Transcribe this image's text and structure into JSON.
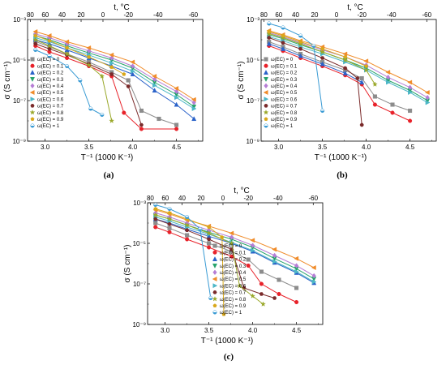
{
  "series_colors": [
    "#8c8c8c",
    "#e8222a",
    "#2a62c9",
    "#26a36b",
    "#b67ed6",
    "#f08c2a",
    "#4db7c7",
    "#7a2a2a",
    "#9aa82a",
    "#d9a81a",
    "#3a9bd4"
  ],
  "series_markers": [
    "square",
    "circle",
    "triangle-up",
    "triangle-down",
    "diamond",
    "triangle-left",
    "triangle-right",
    "hexagon",
    "star",
    "pentagon",
    "half-circle"
  ],
  "chart_data": [
    {
      "type": "line",
      "panel_label": "(a)",
      "xlabel": "T⁻¹ (1000 K⁻¹)",
      "ylabel": "σ (S cm⁻¹)",
      "top_xlabel": "t, °C",
      "xlim": [
        2.8,
        4.8
      ],
      "ylim_log10": [
        -9,
        -3
      ],
      "xticks": [
        "3.0",
        "3.5",
        "4.0",
        "4.5"
      ],
      "xtick_values": [
        3.0,
        3.5,
        4.0,
        4.5
      ],
      "yticks": [
        "10⁻³",
        "10⁻⁵",
        "10⁻⁷",
        "10⁻⁹"
      ],
      "ytick_exponents": [
        -3,
        -5,
        -7,
        -9
      ],
      "top_ticks": [
        "80",
        "60",
        "40",
        "20",
        "0",
        "-20",
        "-40",
        "-60"
      ],
      "top_tick_celsius": [
        80,
        60,
        40,
        20,
        0,
        -20,
        -40,
        -60
      ],
      "legend_position": "left",
      "series": [
        {
          "name": "ω(EC) = 0",
          "x": [
            2.89,
            3.05,
            3.25,
            3.5,
            3.76,
            3.95,
            4.1,
            4.3,
            4.5
          ],
          "log10_y": [
            -4.08,
            -4.35,
            -4.7,
            -5.1,
            -5.6,
            -6.0,
            -7.5,
            -7.9,
            -8.2
          ]
        },
        {
          "name": "ω(EC) = 0.1",
          "x": [
            2.89,
            3.05,
            3.25,
            3.5,
            3.76,
            3.9,
            4.1,
            4.5
          ],
          "log10_y": [
            -4.3,
            -4.6,
            -4.9,
            -5.3,
            -5.8,
            -7.6,
            -8.4,
            -8.4
          ]
        },
        {
          "name": "ω(EC) = 0.2",
          "x": [
            2.89,
            3.05,
            3.25,
            3.5,
            3.76,
            4.0,
            4.25,
            4.5,
            4.7
          ],
          "log10_y": [
            -4.0,
            -4.2,
            -4.5,
            -4.9,
            -5.3,
            -5.7,
            -6.5,
            -7.2,
            -7.9
          ]
        },
        {
          "name": "ω(EC) = 0.3",
          "x": [
            2.89,
            3.05,
            3.25,
            3.5,
            3.76,
            4.0,
            4.25,
            4.5,
            4.7
          ],
          "log10_y": [
            -3.8,
            -4.0,
            -4.3,
            -4.65,
            -5.0,
            -5.4,
            -6.1,
            -6.7,
            -7.3
          ]
        },
        {
          "name": "ω(EC) = 0.4",
          "x": [
            2.89,
            3.05,
            3.25,
            3.5,
            3.76,
            4.0,
            4.25,
            4.5,
            4.7
          ],
          "log10_y": [
            -3.72,
            -3.9,
            -4.2,
            -4.55,
            -4.9,
            -5.3,
            -5.95,
            -6.55,
            -7.1
          ]
        },
        {
          "name": "ω(EC) = 0.5",
          "x": [
            2.89,
            3.05,
            3.25,
            3.5,
            3.76,
            4.0,
            4.25,
            4.5,
            4.7
          ],
          "log10_y": [
            -3.6,
            -3.8,
            -4.1,
            -4.4,
            -4.75,
            -5.1,
            -5.8,
            -6.4,
            -6.95
          ]
        },
        {
          "name": "ω(EC) = 0.6",
          "x": [
            2.89,
            3.05,
            3.25,
            3.5,
            3.76,
            4.0,
            4.25,
            4.5,
            4.7
          ],
          "log10_y": [
            -3.9,
            -4.1,
            -4.4,
            -4.75,
            -5.15,
            -5.55,
            -6.25,
            -6.85,
            -7.4
          ]
        },
        {
          "name": "ω(EC) = 0.7",
          "x": [
            2.89,
            3.05,
            3.25,
            3.5,
            3.76,
            3.95,
            4.1
          ],
          "log10_y": [
            -4.2,
            -4.45,
            -4.75,
            -5.2,
            -5.7,
            -6.3,
            -8.2
          ]
        },
        {
          "name": "ω(EC) = 0.8",
          "x": [
            2.89,
            3.05,
            3.25,
            3.5,
            3.65,
            3.76
          ],
          "log10_y": [
            -4.0,
            -4.3,
            -4.7,
            -5.25,
            -5.8,
            -8.0
          ]
        },
        {
          "name": "ω(EC) = 0.9",
          "x": [
            2.89,
            3.05,
            3.25,
            3.5,
            3.76,
            3.9
          ],
          "log10_y": [
            -3.8,
            -4.05,
            -4.4,
            -4.85,
            -5.35,
            -5.7
          ]
        },
        {
          "name": "ω(EC) = 1",
          "x": [
            2.89,
            3.05,
            3.25,
            3.4,
            3.52,
            3.65
          ],
          "log10_y": [
            -4.5,
            -4.8,
            -5.3,
            -6.0,
            -7.4,
            -7.7
          ]
        }
      ]
    },
    {
      "type": "line",
      "panel_label": "(b)",
      "xlabel": "T⁻¹ (1000 K⁻¹)",
      "ylabel": "σ (S cm⁻¹)",
      "top_xlabel": "t, °C",
      "xlim": [
        2.8,
        4.8
      ],
      "ylim_log10": [
        -9,
        -3
      ],
      "xticks": [
        "3.0",
        "3.5",
        "4.0",
        "4.5"
      ],
      "xtick_values": [
        3.0,
        3.5,
        4.0,
        4.5
      ],
      "yticks": [
        "10⁻³",
        "10⁻⁵",
        "10⁻⁷",
        "10⁻⁹"
      ],
      "ytick_exponents": [
        -3,
        -5,
        -7,
        -9
      ],
      "top_ticks": [
        "80",
        "60",
        "40",
        "20",
        "0",
        "-20",
        "-40",
        "-60"
      ],
      "top_tick_celsius": [
        80,
        60,
        40,
        20,
        0,
        -20,
        -40,
        -60
      ],
      "legend_position": "left",
      "series": [
        {
          "name": "ω(EC) = 0",
          "x": [
            2.89,
            3.05,
            3.25,
            3.5,
            3.76,
            3.95,
            4.1,
            4.3,
            4.5
          ],
          "log10_y": [
            -4.1,
            -4.35,
            -4.7,
            -5.1,
            -5.5,
            -5.9,
            -6.8,
            -7.2,
            -7.5
          ]
        },
        {
          "name": "ω(EC) = 0.1",
          "x": [
            2.89,
            3.05,
            3.25,
            3.5,
            3.76,
            3.95,
            4.1,
            4.3,
            4.5
          ],
          "log10_y": [
            -4.3,
            -4.55,
            -4.9,
            -5.3,
            -5.75,
            -6.2,
            -7.2,
            -7.6,
            -8.0
          ]
        },
        {
          "name": "ω(EC) = 0.2",
          "x": [
            2.89,
            3.05,
            3.25,
            3.5,
            3.76,
            3.95
          ],
          "log10_y": [
            -4.2,
            -4.45,
            -4.8,
            -5.2,
            -5.65,
            -6.1
          ]
        },
        {
          "name": "ω(EC) = 0.3",
          "x": [
            2.89,
            3.05,
            3.25,
            3.5,
            3.76,
            4.0,
            4.25,
            4.5,
            4.7
          ],
          "log10_y": [
            -3.75,
            -3.95,
            -4.25,
            -4.6,
            -5.0,
            -5.4,
            -6.0,
            -6.5,
            -7.0
          ]
        },
        {
          "name": "ω(EC) = 0.4",
          "x": [
            2.89,
            3.05,
            3.25,
            3.5,
            3.76,
            4.0,
            4.25,
            4.5,
            4.7
          ],
          "log10_y": [
            -3.65,
            -3.85,
            -4.15,
            -4.5,
            -4.85,
            -5.25,
            -5.85,
            -6.35,
            -6.85
          ]
        },
        {
          "name": "ω(EC) = 0.5",
          "x": [
            2.89,
            3.05,
            3.25,
            3.5,
            3.76,
            4.0,
            4.25,
            4.5,
            4.7
          ],
          "log10_y": [
            -3.55,
            -3.75,
            -4.05,
            -4.35,
            -4.7,
            -5.05,
            -5.6,
            -6.1,
            -6.6
          ]
        },
        {
          "name": "ω(EC) = 0.6",
          "x": [
            2.89,
            3.05,
            3.25,
            3.5,
            3.76,
            4.0,
            4.25,
            4.5,
            4.7
          ],
          "log10_y": [
            -3.85,
            -4.05,
            -4.35,
            -4.7,
            -5.1,
            -5.5,
            -6.1,
            -6.6,
            -7.1
          ]
        },
        {
          "name": "ω(EC) = 0.7",
          "x": [
            2.89,
            3.05,
            3.25,
            3.5,
            3.76,
            3.9,
            3.95
          ],
          "log10_y": [
            -3.9,
            -4.15,
            -4.45,
            -4.9,
            -5.4,
            -5.9,
            -8.2
          ]
        },
        {
          "name": "ω(EC) = 0.8",
          "x": [
            2.89,
            3.05,
            3.25,
            3.5,
            3.76,
            4.0,
            4.1
          ],
          "log10_y": [
            -3.7,
            -3.9,
            -4.2,
            -4.6,
            -5.0,
            -5.5,
            -6.2
          ]
        },
        {
          "name": "ω(EC) = 0.9",
          "x": [
            2.89,
            3.05,
            3.25,
            3.5,
            3.76,
            4.0
          ],
          "log10_y": [
            -3.6,
            -3.8,
            -4.1,
            -4.45,
            -4.85,
            -5.3
          ]
        },
        {
          "name": "ω(EC) = 1",
          "x": [
            2.89,
            3.05,
            3.25,
            3.4,
            3.5
          ],
          "log10_y": [
            -3.2,
            -3.4,
            -3.8,
            -4.3,
            -7.5
          ]
        }
      ]
    },
    {
      "type": "line",
      "panel_label": "(c)",
      "xlabel": "T⁻¹ (1000 K⁻¹)",
      "ylabel": "σ (S cm⁻¹)",
      "top_xlabel": "t, °C",
      "xlim": [
        2.8,
        4.8
      ],
      "ylim_log10": [
        -9,
        -3
      ],
      "xticks": [
        "3.0",
        "3.5",
        "4.0",
        "4.5"
      ],
      "xtick_values": [
        3.0,
        3.5,
        4.0,
        4.5
      ],
      "yticks": [
        "10⁻³",
        "10⁻⁵",
        "10⁻⁷",
        "10⁻⁹"
      ],
      "ytick_exponents": [
        -3,
        -5,
        -7,
        -9
      ],
      "top_ticks": [
        "80",
        "60",
        "40",
        "20",
        "0",
        "-20",
        "-40",
        "-60"
      ],
      "top_tick_celsius": [
        80,
        60,
        40,
        20,
        0,
        -20,
        -40,
        -60
      ],
      "legend_position": "left",
      "series": [
        {
          "name": "ω(EC) = 0",
          "x": [
            2.89,
            3.05,
            3.25,
            3.5,
            3.76,
            3.95,
            4.1,
            4.3,
            4.5
          ],
          "log10_y": [
            -4.0,
            -4.25,
            -4.6,
            -5.0,
            -5.4,
            -5.8,
            -6.4,
            -6.8,
            -7.2
          ]
        },
        {
          "name": "ω(EC) = 0.1",
          "x": [
            2.89,
            3.05,
            3.25,
            3.5,
            3.76,
            3.95,
            4.1,
            4.3,
            4.5
          ],
          "log10_y": [
            -4.2,
            -4.45,
            -4.8,
            -5.2,
            -5.65,
            -6.1,
            -7.0,
            -7.5,
            -7.9
          ]
        },
        {
          "name": "ω(EC) = 0.2",
          "x": [
            2.89,
            3.05,
            3.25,
            3.5,
            3.76,
            4.0,
            4.25,
            4.5,
            4.7
          ],
          "log10_y": [
            -3.8,
            -4.0,
            -4.3,
            -4.65,
            -5.0,
            -5.4,
            -5.95,
            -6.45,
            -6.95
          ]
        },
        {
          "name": "ω(EC) = 0.3",
          "x": [
            2.89,
            3.05,
            3.25,
            3.5,
            3.76,
            4.0,
            4.25,
            4.5,
            4.7
          ],
          "log10_y": [
            -3.6,
            -3.8,
            -4.1,
            -4.45,
            -4.8,
            -5.2,
            -5.75,
            -6.25,
            -6.75
          ]
        },
        {
          "name": "ω(EC) = 0.4",
          "x": [
            2.89,
            3.05,
            3.25,
            3.5,
            3.76,
            4.0,
            4.25,
            4.5,
            4.7
          ],
          "log10_y": [
            -3.5,
            -3.7,
            -4.0,
            -4.35,
            -4.7,
            -5.1,
            -5.6,
            -6.1,
            -6.6
          ]
        },
        {
          "name": "ω(EC) = 0.5",
          "x": [
            2.89,
            3.05,
            3.25,
            3.5,
            3.76,
            4.0,
            4.25,
            4.5,
            4.7
          ],
          "log10_y": [
            -3.35,
            -3.55,
            -3.85,
            -4.15,
            -4.5,
            -4.85,
            -5.3,
            -5.75,
            -6.2
          ]
        },
        {
          "name": "ω(EC) = 0.6",
          "x": [
            2.89,
            3.05,
            3.25,
            3.5,
            3.76,
            4.0,
            4.25,
            4.5,
            4.7
          ],
          "log10_y": [
            -3.7,
            -3.9,
            -4.2,
            -4.55,
            -4.95,
            -5.35,
            -5.9,
            -6.4,
            -6.9
          ]
        },
        {
          "name": "ω(EC) = 0.7",
          "x": [
            2.89,
            3.05,
            3.25,
            3.5,
            3.76,
            3.9,
            4.1,
            4.25
          ],
          "log10_y": [
            -3.8,
            -4.05,
            -4.35,
            -4.8,
            -5.3,
            -7.2,
            -7.5,
            -7.7
          ]
        },
        {
          "name": "ω(EC) = 0.8",
          "x": [
            2.89,
            3.05,
            3.25,
            3.5,
            3.76,
            3.85,
            4.0,
            4.12
          ],
          "log10_y": [
            -3.6,
            -3.8,
            -4.1,
            -4.5,
            -5.0,
            -7.1,
            -7.6,
            -8.0
          ]
        },
        {
          "name": "ω(EC) = 0.9",
          "x": [
            2.89,
            3.05,
            3.25,
            3.5,
            3.65,
            3.67
          ],
          "log10_y": [
            -3.3,
            -3.5,
            -3.8,
            -4.2,
            -4.7,
            -8.5
          ]
        },
        {
          "name": "ω(EC) = 1",
          "x": [
            2.89,
            3.05,
            3.25,
            3.4,
            3.52
          ],
          "log10_y": [
            -3.1,
            -3.3,
            -3.7,
            -4.3,
            -7.7
          ]
        }
      ]
    }
  ]
}
